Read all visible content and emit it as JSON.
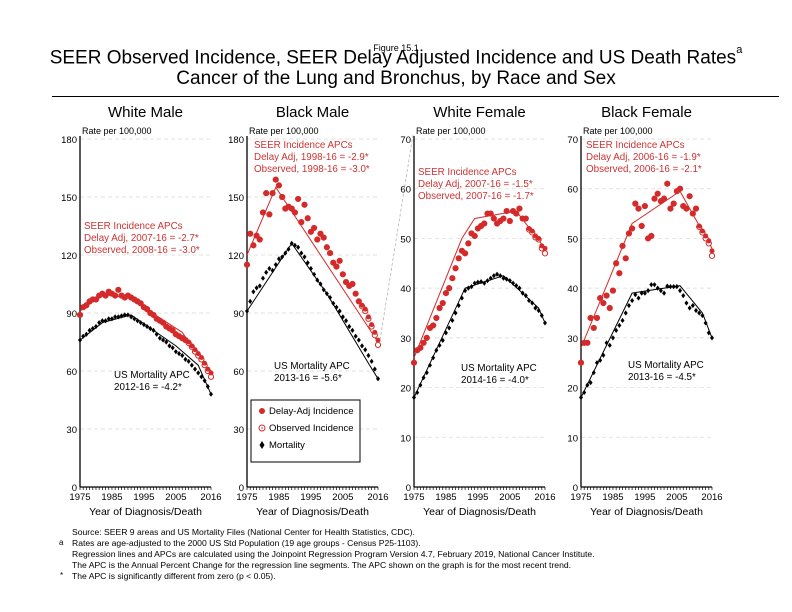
{
  "figure_label": "Figure 15.1",
  "title_line1": "SEER Observed Incidence, SEER Delay Adjusted Incidence and US Death Rates",
  "title_superscript": "a",
  "title_line2": "Cancer of the Lung and Bronchus, by Race and Sex",
  "colors": {
    "incidence": "#d42a2a",
    "mortality": "#000000",
    "grid": "#d9d9d9",
    "annotation": "#cc3333"
  },
  "legend": [
    {
      "label": "Delay-Adj Incidence",
      "marker": "filled-circle"
    },
    {
      "label": "Observed Incidence",
      "marker": "open-circle"
    },
    {
      "label": "Mortality",
      "marker": "filled-diamond"
    }
  ],
  "footnotes": [
    {
      "mark": "",
      "text": "Source: SEER 9 areas and US Mortality Files (National Center for Health Statistics, CDC)."
    },
    {
      "mark": "a",
      "text": "Rates are age-adjusted to the 2000 US Std Population (19 age groups - Census P25-1103)."
    },
    {
      "mark": "",
      "text": "Regression lines and APCs are calculated using the Joinpoint Regression Program Version 4.7, February 2019, National Cancer Institute."
    },
    {
      "mark": "",
      "text": "The APC is the Annual Percent Change for the regression line segments. The APC shown on the graph is for the most recent trend."
    },
    {
      "mark": "*",
      "text": "The APC is significantly different from zero (p < 0.05)."
    }
  ],
  "chart_data": [
    {
      "type": "scatter",
      "title": "White Male",
      "ylabel": "Rate per 100,000",
      "xlabel": "Year of Diagnosis/Death",
      "xlim": [
        1975,
        2016
      ],
      "xticks": [
        "1975",
        "1985",
        "1995",
        "2005",
        "2016"
      ],
      "ylim": [
        0,
        180
      ],
      "yticks": [
        0,
        30,
        60,
        90,
        120,
        150,
        180
      ],
      "grid": true,
      "incidence_apc": [
        "SEER Incidence APCs",
        "Delay Adj, 2007-16 = -2.7*",
        "Observed, 2008-16 = -3.0*"
      ],
      "mortality_apc": [
        "US Mortality APC",
        "2012-16 = -4.2*"
      ],
      "x_start": 1975,
      "series": [
        {
          "name": "Delay-Adj Incidence",
          "values": [
            89,
            93,
            94,
            96,
            97,
            97,
            99,
            100,
            99,
            101,
            100,
            99,
            102,
            99,
            98,
            99,
            98,
            97,
            96,
            95,
            93,
            92,
            90,
            89,
            87,
            86,
            85,
            83,
            82,
            81,
            79,
            78,
            77,
            76,
            75,
            73,
            71,
            69,
            67,
            64,
            61,
            59
          ]
        },
        {
          "name": "Observed Incidence",
          "values": [
            89,
            93,
            94,
            96,
            97,
            97,
            99,
            100,
            99,
            101,
            100,
            99,
            102,
            99,
            98,
            99,
            98,
            97,
            96,
            95,
            93,
            92,
            90,
            89,
            87,
            86,
            85,
            83,
            82,
            81,
            79,
            78,
            77,
            76,
            74.5,
            72.5,
            70,
            68,
            66,
            63,
            60,
            57
          ]
        },
        {
          "name": "Mortality",
          "values": [
            76,
            78,
            79,
            81,
            82,
            83,
            85,
            86,
            86,
            87,
            87,
            88,
            88,
            88.5,
            89,
            89,
            88,
            87,
            86,
            85,
            84,
            83,
            82,
            81,
            79,
            77,
            76,
            75,
            73,
            72,
            70,
            69,
            68,
            66,
            65,
            63,
            61,
            59,
            57,
            55,
            52,
            48
          ]
        }
      ],
      "trend_incidence": [
        [
          1975,
          91
        ],
        [
          1982,
          99.5
        ],
        [
          1990,
          98
        ],
        [
          2007,
          80
        ],
        [
          2016,
          58
        ]
      ],
      "trend_mortality": [
        [
          1975,
          76
        ],
        [
          1982,
          85
        ],
        [
          1991,
          89
        ],
        [
          2005,
          73
        ],
        [
          2012,
          63
        ],
        [
          2016,
          48
        ]
      ]
    },
    {
      "type": "scatter",
      "title": "Black Male",
      "ylabel": "Rate per 100,000",
      "xlabel": "Year of Diagnosis/Death",
      "xlim": [
        1975,
        2016
      ],
      "xticks": [
        "1975",
        "1985",
        "1995",
        "2005",
        "2016"
      ],
      "ylim": [
        0,
        180
      ],
      "yticks": [
        0,
        30,
        60,
        90,
        120,
        150,
        180
      ],
      "grid": true,
      "incidence_apc": [
        "SEER Incidence APCs",
        "Delay Adj, 1998-16 = -2.9*",
        "Observed, 1998-16 = -3.0*"
      ],
      "mortality_apc": [
        "US Mortality APC",
        "2013-16 = -5.6*"
      ],
      "x_start": 1975,
      "series": [
        {
          "name": "Delay-Adj Incidence",
          "values": [
            115,
            131,
            125,
            130,
            128,
            142,
            152,
            141,
            152,
            159,
            156,
            150,
            144,
            145,
            144,
            142,
            149,
            137,
            146,
            139,
            132,
            134,
            128,
            131,
            129,
            124,
            121,
            116,
            114,
            117,
            110,
            106,
            104,
            105,
            100,
            96,
            94,
            92,
            88,
            84,
            80,
            76
          ]
        },
        {
          "name": "Observed Incidence",
          "values": [
            115,
            131,
            125,
            130,
            128,
            142,
            152,
            141,
            152,
            159,
            156,
            150,
            144,
            145,
            144,
            142,
            149,
            137,
            146,
            139,
            132,
            134,
            128,
            131,
            129,
            124,
            121,
            116,
            114,
            117,
            110,
            106,
            104,
            105,
            100,
            96,
            93.5,
            91,
            87,
            83,
            78.5,
            73.5
          ]
        },
        {
          "name": "Mortality",
          "values": [
            91,
            96,
            101,
            103,
            104,
            108,
            111,
            113,
            112,
            115,
            118,
            119,
            121,
            123,
            126,
            125,
            124,
            121,
            119,
            116,
            113,
            110,
            107,
            105,
            102,
            100,
            98,
            95,
            93,
            91,
            88,
            86,
            83,
            81,
            78,
            76,
            73,
            71,
            68,
            65,
            61,
            56
          ]
        }
      ],
      "trend_incidence": [
        [
          1975,
          120
        ],
        [
          1984,
          155
        ],
        [
          2016,
          75
        ]
      ],
      "trend_mortality": [
        [
          1975,
          91
        ],
        [
          1989,
          126
        ],
        [
          2000,
          100
        ],
        [
          2013,
          64
        ],
        [
          2016,
          56
        ]
      ]
    },
    {
      "type": "scatter",
      "title": "White Female",
      "ylabel": "Rate per 100,000",
      "xlabel": "Year of Diagnosis/Death",
      "xlim": [
        1975,
        2016
      ],
      "xticks": [
        "1975",
        "1985",
        "1995",
        "2005",
        "2016"
      ],
      "ylim": [
        0,
        70
      ],
      "yticks": [
        0,
        10,
        20,
        30,
        40,
        50,
        60,
        70
      ],
      "grid": true,
      "incidence_apc": [
        "SEER Incidence APCs",
        "Delay Adj, 2007-16 = -1.5*",
        "Observed, 2007-16 = -1.7*"
      ],
      "mortality_apc": [
        "US Mortality APC",
        "2014-16 = -4.0*"
      ],
      "x_start": 1975,
      "series": [
        {
          "name": "Delay-Adj Incidence",
          "values": [
            25,
            27.5,
            28,
            29,
            30,
            32,
            32.5,
            34,
            36,
            37,
            39,
            40,
            42,
            44,
            46,
            47.5,
            47,
            49,
            51,
            50.5,
            52,
            52.5,
            53,
            55,
            55,
            54,
            53,
            53.5,
            54,
            55.5,
            53.5,
            55.5,
            55,
            56,
            54,
            54,
            52,
            51.5,
            50.5,
            50,
            48.5,
            48
          ]
        },
        {
          "name": "Observed Incidence",
          "values": [
            25,
            27.5,
            28,
            29,
            30,
            32,
            32.5,
            34,
            36,
            37,
            39,
            40,
            42,
            44,
            46,
            47.5,
            47,
            49,
            51,
            50.5,
            52,
            52.5,
            53,
            55,
            55,
            54,
            53,
            53.5,
            54,
            55.5,
            53.5,
            55.5,
            55,
            56,
            54,
            54,
            51.8,
            51.2,
            50.2,
            49.8,
            48,
            47
          ]
        },
        {
          "name": "Mortality",
          "values": [
            18,
            19,
            20.5,
            22,
            23,
            24.5,
            26,
            27.5,
            28.5,
            29.5,
            31,
            32,
            33.5,
            35,
            36.5,
            38,
            39.5,
            40,
            40.3,
            41,
            41.2,
            41.3,
            41,
            41.5,
            42,
            42.5,
            42.8,
            42.5,
            42,
            41.8,
            41.5,
            41,
            40.5,
            40,
            39,
            38.5,
            37.5,
            37,
            36,
            35.5,
            34.5,
            33
          ]
        }
      ],
      "trend_incidence": [
        [
          1975,
          26
        ],
        [
          1990,
          50
        ],
        [
          1994,
          54
        ],
        [
          2007,
          55.5
        ],
        [
          2016,
          48
        ]
      ],
      "trend_mortality": [
        [
          1975,
          18
        ],
        [
          1991,
          40
        ],
        [
          2003,
          42.5
        ],
        [
          2014,
          36
        ],
        [
          2016,
          33
        ]
      ]
    },
    {
      "type": "scatter",
      "title": "Black Female",
      "ylabel": "Rate per 100,000",
      "xlabel": "Year of Diagnosis/Death",
      "xlim": [
        1975,
        2016
      ],
      "xticks": [
        "1975",
        "1985",
        "1995",
        "2005",
        "2016"
      ],
      "ylim": [
        0,
        70
      ],
      "yticks": [
        0,
        10,
        20,
        30,
        40,
        50,
        60,
        70
      ],
      "grid": true,
      "incidence_apc": [
        "SEER Incidence APCs",
        "Delay Adj, 2006-16 = -1.9*",
        "Observed, 2006-16 = -2.1*"
      ],
      "mortality_apc": [
        "US Mortality APC",
        "2013-16 = -4.5*"
      ],
      "x_start": 1975,
      "series": [
        {
          "name": "Delay-Adj Incidence",
          "values": [
            25,
            29,
            29,
            34,
            32,
            34,
            38,
            37,
            38.5,
            36,
            39.5,
            45,
            43,
            48.5,
            46,
            51,
            52,
            57,
            56,
            52.5,
            56.5,
            50,
            50.5,
            58,
            59,
            57.5,
            58,
            61,
            56,
            57,
            59.5,
            60,
            56.5,
            56,
            58.5,
            55,
            56,
            52.5,
            51.5,
            50.5,
            49.5,
            47.5
          ]
        },
        {
          "name": "Observed Incidence",
          "values": [
            25,
            29,
            29,
            34,
            32,
            34,
            38,
            37,
            38.5,
            36,
            39.5,
            45,
            43,
            48.5,
            46,
            51,
            52,
            57,
            56,
            52.5,
            56.5,
            50,
            50.5,
            58,
            59,
            57.5,
            58,
            61,
            56,
            57,
            59.5,
            60,
            56.5,
            56,
            58.5,
            55,
            56,
            52.3,
            51.2,
            50,
            49,
            46.5
          ]
        },
        {
          "name": "Mortality",
          "values": [
            18,
            19,
            20.5,
            21,
            23,
            25,
            25.5,
            26.5,
            29,
            28.5,
            30,
            31.5,
            32.5,
            33.5,
            35,
            36.5,
            37.5,
            38.7,
            38,
            39,
            39,
            39.5,
            40.7,
            40.7,
            40,
            39.5,
            39,
            40.4,
            40.3,
            40.3,
            40.3,
            39.5,
            38.5,
            37,
            36,
            36.5,
            35.5,
            35,
            34.5,
            33,
            31,
            30
          ]
        }
      ],
      "trend_incidence": [
        [
          1975,
          28
        ],
        [
          1991,
          53
        ],
        [
          2006,
          59.5
        ],
        [
          2016,
          48
        ]
      ],
      "trend_mortality": [
        [
          1975,
          18
        ],
        [
          1991,
          39
        ],
        [
          2006,
          40.5
        ],
        [
          2013,
          35
        ],
        [
          2016,
          30
        ]
      ]
    }
  ]
}
